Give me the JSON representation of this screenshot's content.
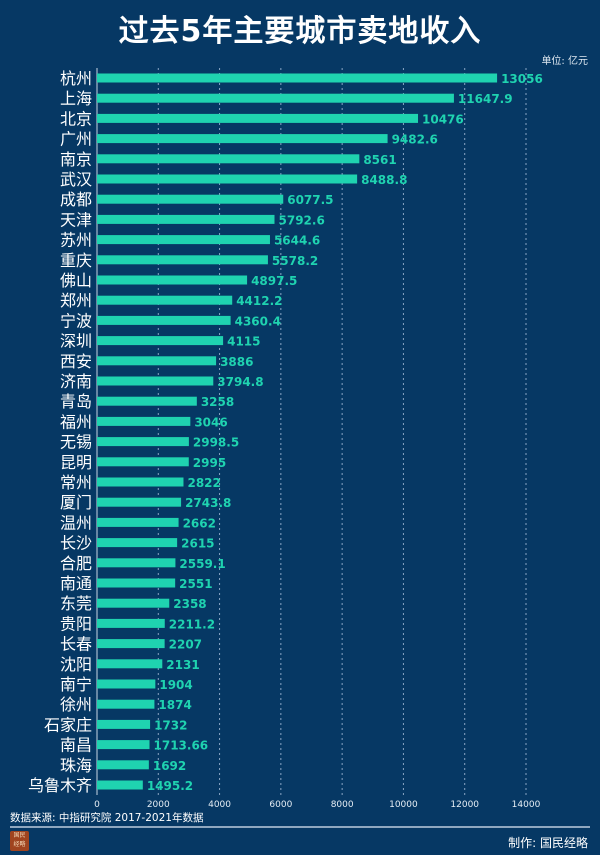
{
  "chart_data": {
    "type": "bar",
    "orientation": "horizontal",
    "title": "过去5年主要城市卖地收入",
    "unit_label": "单位: 亿元",
    "categories": [
      "杭州",
      "上海",
      "北京",
      "广州",
      "南京",
      "武汉",
      "成都",
      "天津",
      "苏州",
      "重庆",
      "佛山",
      "郑州",
      "宁波",
      "深圳",
      "西安",
      "济南",
      "青岛",
      "福州",
      "无锡",
      "昆明",
      "常州",
      "厦门",
      "温州",
      "长沙",
      "合肥",
      "南通",
      "东莞",
      "贵阳",
      "长春",
      "沈阳",
      "南宁",
      "徐州",
      "石家庄",
      "南昌",
      "珠海",
      "乌鲁木齐"
    ],
    "values": [
      13056,
      11647.9,
      10476,
      9482.6,
      8561,
      8488.8,
      6077.5,
      5792.6,
      5644.6,
      5578.2,
      4897.5,
      4412.2,
      4360.4,
      4115,
      3886,
      3794.8,
      3258,
      3046,
      2998.5,
      2995,
      2822,
      2743.8,
      2662,
      2615,
      2559.1,
      2551,
      2358,
      2211.2,
      2207,
      2131,
      1904,
      1874,
      1732,
      1713.66,
      1692,
      1495.2
    ],
    "data_labels": [
      "13056",
      "11647.9",
      "10476",
      "9482.6",
      "8561",
      "8488.8",
      "6077.5",
      "5792.6",
      "5644.6",
      "5578.2",
      "4897.5",
      "4412.2",
      "4360.4",
      "4115",
      "3886",
      "3794.8",
      "3258",
      "3046",
      "2998.5",
      "2995",
      "2822",
      "2743.8",
      "2662",
      "2615",
      "2559.1",
      "2551",
      "2358",
      "2211.2",
      "2207",
      "2131",
      "1904",
      "1874",
      "1732",
      "1713.66",
      "1692",
      "1495.2"
    ],
    "xlim": [
      0,
      14000
    ],
    "x_ticks": [
      "0",
      "2000",
      "4000",
      "6000",
      "8000",
      "10000",
      "12000",
      "14000"
    ],
    "grid": "vertical dashed",
    "legend": "none",
    "bar_color": "#1fd3b0",
    "background_color": "#063864"
  },
  "footer": {
    "source": "数据来源: 中指研究院  2017-2021年数据",
    "credit": "制作: 国民经略",
    "seal_text": "国民经略"
  }
}
